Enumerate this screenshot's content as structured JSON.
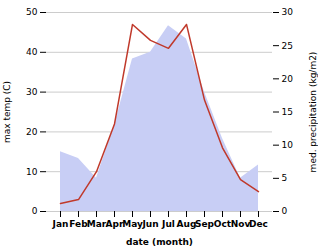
{
  "chart_data": {
    "type": "line",
    "categories": [
      "Jan",
      "Feb",
      "Mar",
      "Apr",
      "May",
      "Jun",
      "Jul",
      "Aug",
      "Sep",
      "Oct",
      "Nov",
      "Dec"
    ],
    "series": [
      {
        "type": "area",
        "color": "#c8cef5",
        "axis": "y2",
        "values": [
          9,
          8,
          5,
          13,
          23,
          24,
          28,
          26,
          18,
          11,
          5,
          7
        ]
      },
      {
        "type": "line",
        "color": "#c0392b",
        "axis": "y",
        "values": [
          2,
          3,
          10,
          22,
          47,
          43,
          41,
          47,
          28,
          16,
          8,
          5
        ]
      }
    ],
    "xlabel": "date (month)",
    "ylabel": "max temp (C)",
    "y2label": "med. precipitation (kg/m2)",
    "ylim": [
      0,
      50
    ],
    "yticks": [
      0,
      10,
      20,
      30,
      40,
      50
    ],
    "y2lim": [
      0,
      30
    ],
    "y2ticks": [
      0,
      5,
      10,
      15,
      20,
      25,
      30
    ],
    "grid": true
  }
}
